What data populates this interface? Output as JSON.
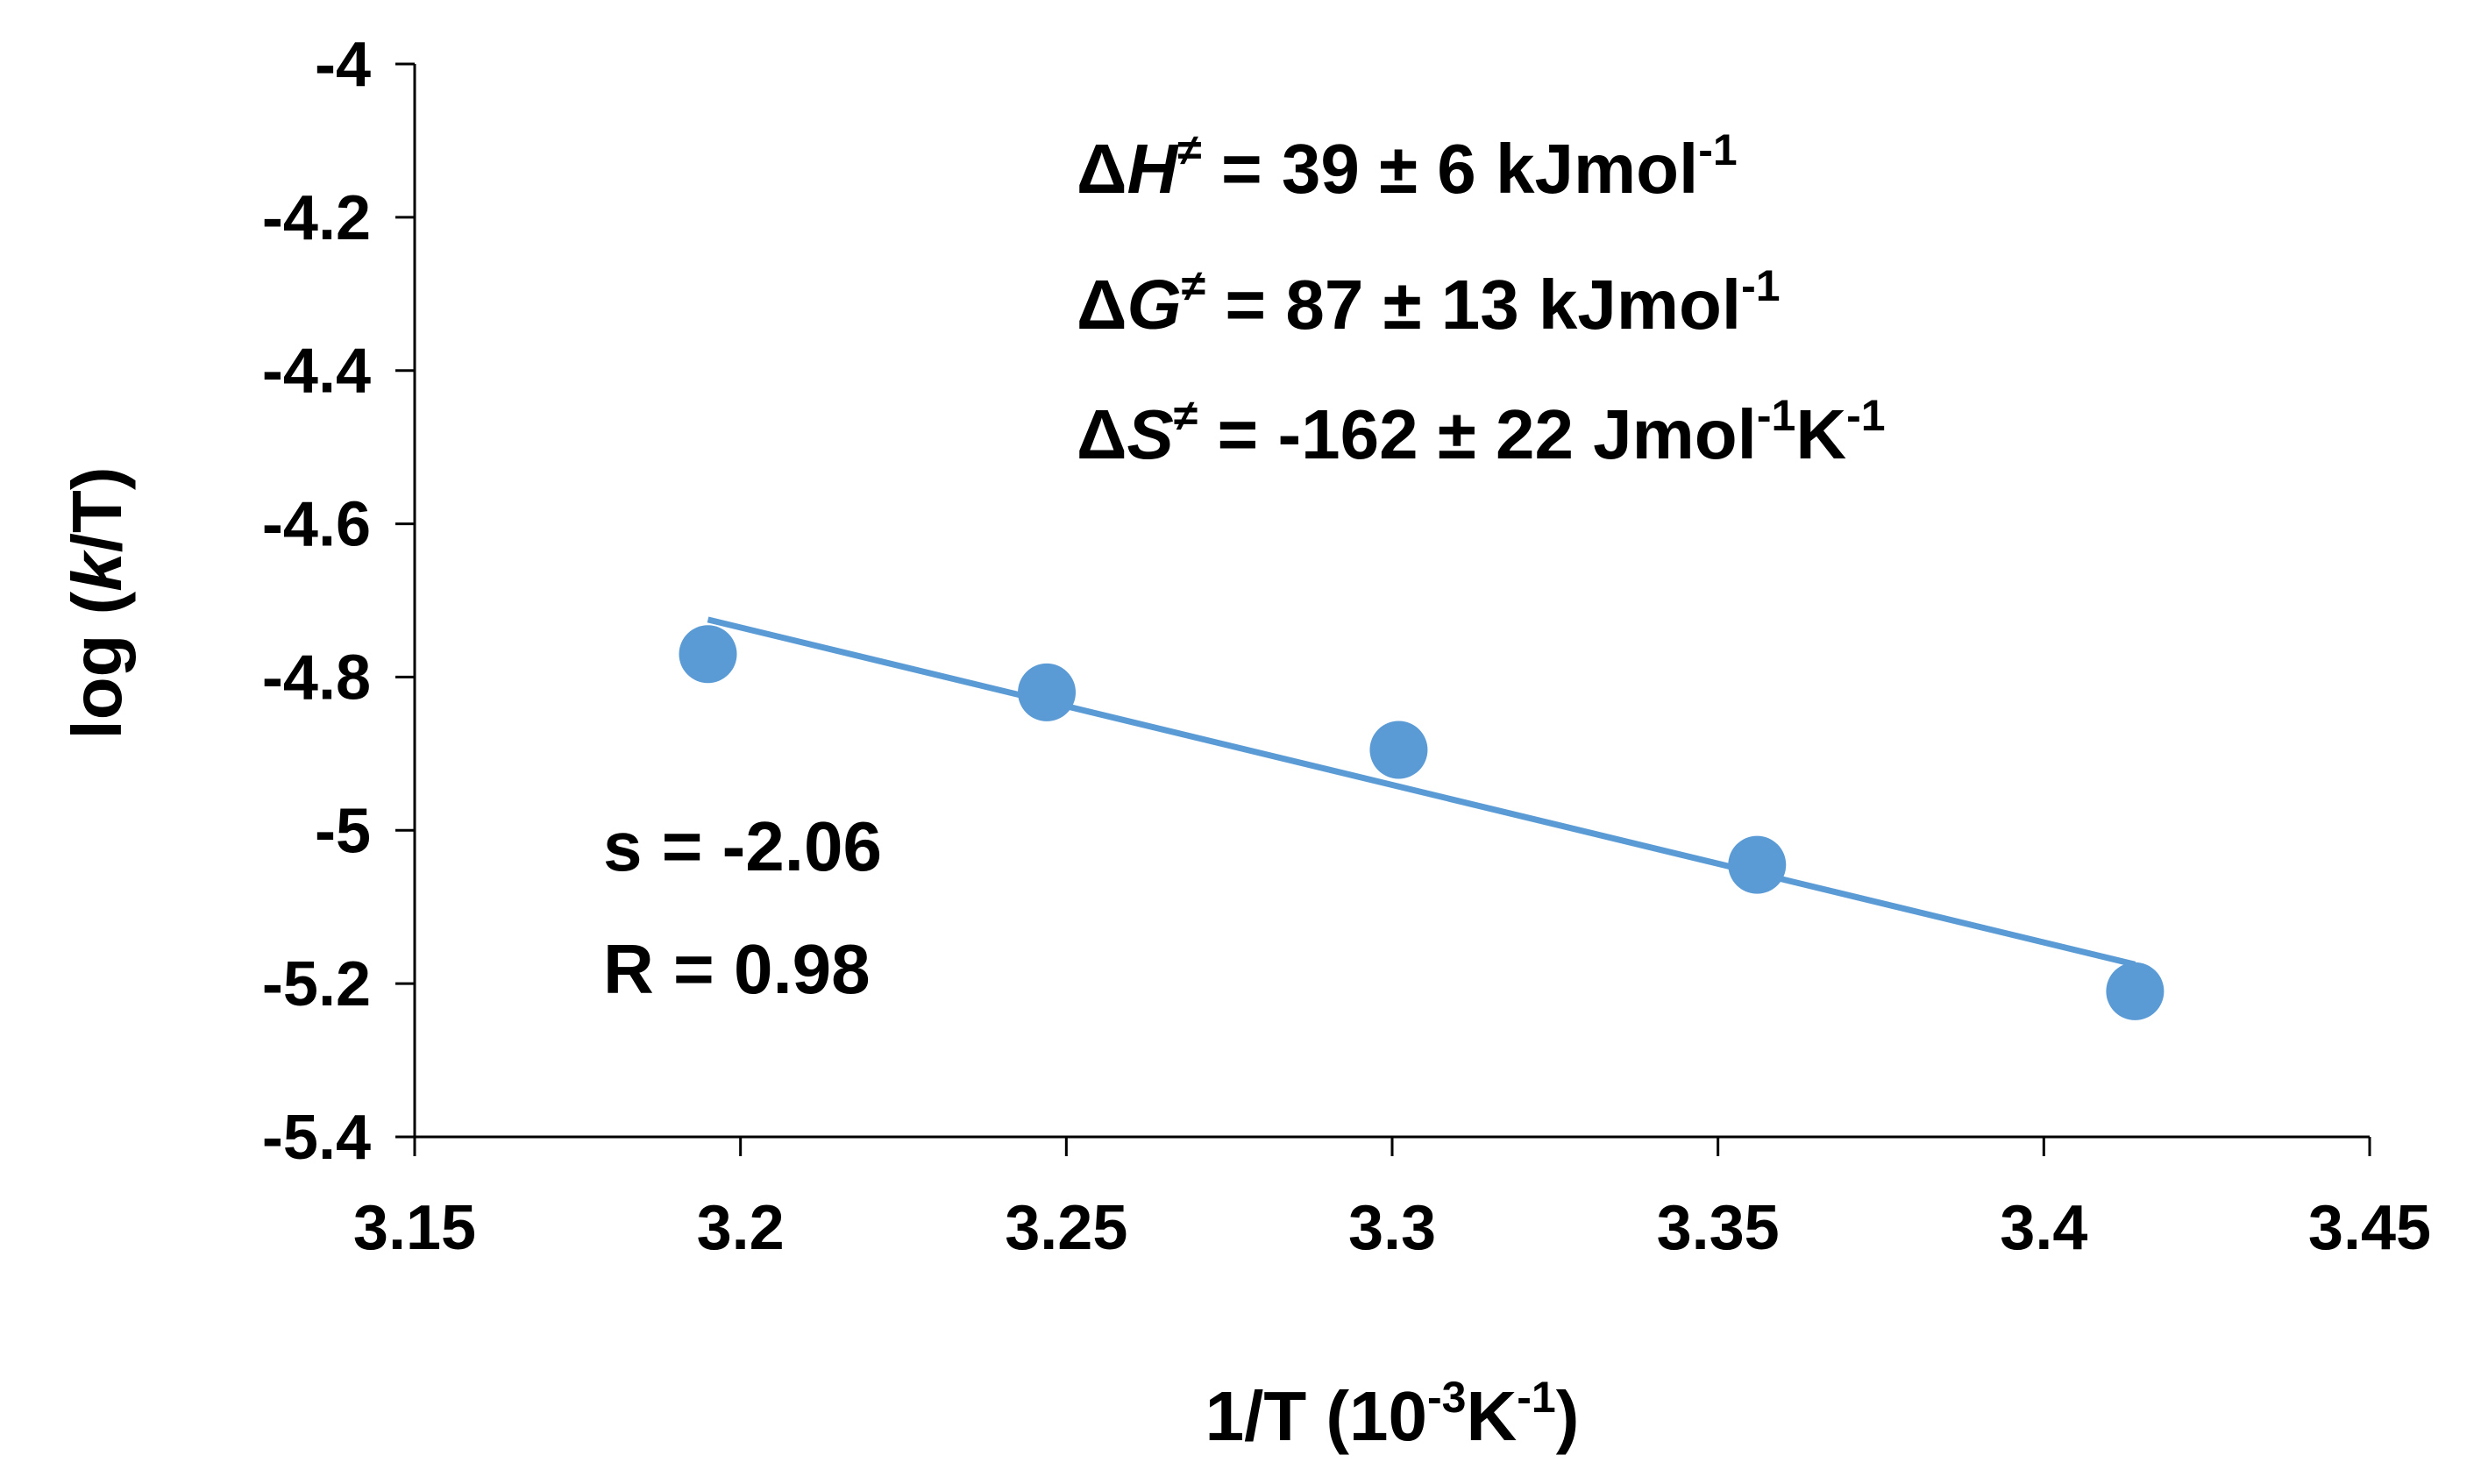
{
  "chart_data": {
    "type": "scatter",
    "xlabel": {
      "prefix": "1/T (10",
      "sup1": "-3",
      "mid": "K",
      "sup2": "-1",
      "suffix": ")"
    },
    "ylabel": {
      "prefix": "log (",
      "italic": "k",
      "suffix": "/T)"
    },
    "xlim": [
      3.15,
      3.45
    ],
    "ylim": [
      -5.4,
      -4.0
    ],
    "xticks": [
      3.15,
      3.2,
      3.25,
      3.3,
      3.35,
      3.4,
      3.45
    ],
    "xtick_labels": [
      "3.15",
      "3.2",
      "3.25",
      "3.3",
      "3.35",
      "3.4",
      "3.45"
    ],
    "yticks": [
      -4.0,
      -4.2,
      -4.4,
      -4.6,
      -4.8,
      -5.0,
      -5.2,
      -5.4
    ],
    "ytick_labels": [
      "-4",
      "-4.2",
      "-4.4",
      "-4.6",
      "-4.8",
      "-5",
      "-5.2",
      "-5.4"
    ],
    "grid": false,
    "series": [
      {
        "name": "data",
        "color": "#5b9bd5",
        "x": [
          3.195,
          3.247,
          3.301,
          3.356,
          3.414
        ],
        "y": [
          -4.77,
          -4.82,
          -4.895,
          -5.045,
          -5.21
        ]
      }
    ],
    "fit_line": {
      "color": "#5b9bd5",
      "x": [
        3.195,
        3.414
      ],
      "y": [
        -4.725,
        -5.175
      ]
    },
    "annotations": {
      "dH": {
        "delta": "Δ",
        "sym": "H",
        "ne": "≠",
        "text": " = 39 ±  6 kJmol",
        "sup": "-1"
      },
      "dG": {
        "delta": "Δ",
        "sym": "G",
        "ne": "≠",
        "text": " = 87 ± 13 kJmol",
        "sup": "-1"
      },
      "dS": {
        "delta": "Δ",
        "sym": "S",
        "ne": "≠",
        "text": " = -162 ± 22 Jmol",
        "sup": "-1",
        "text2": "K",
        "sup2": "-1"
      },
      "slope": "s = -2.06",
      "r": "R = 0.98"
    }
  }
}
